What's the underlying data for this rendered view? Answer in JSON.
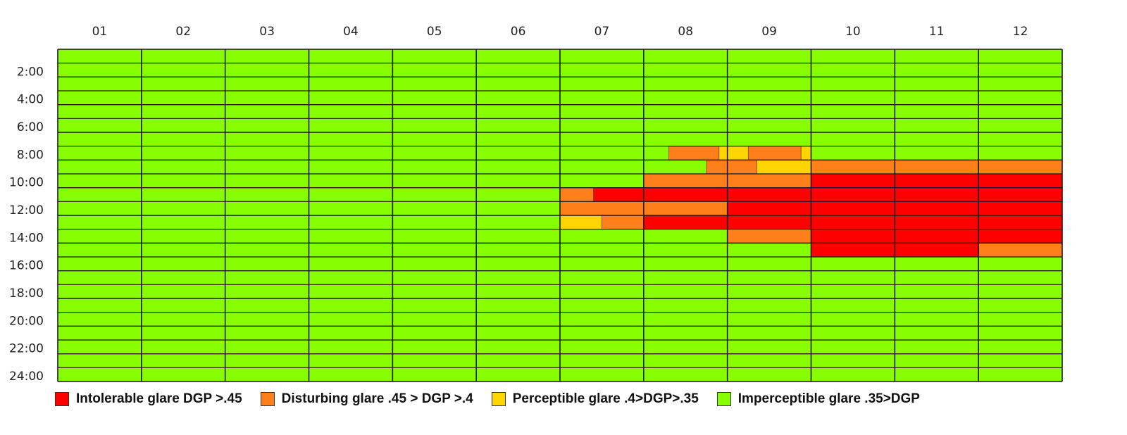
{
  "chart_data": {
    "type": "heatmap",
    "title": "",
    "xlabel": "",
    "ylabel": "",
    "months": [
      "01",
      "02",
      "03",
      "04",
      "05",
      "06",
      "07",
      "08",
      "09",
      "10",
      "11",
      "12"
    ],
    "hour_tick_labels": [
      "2:00",
      "4:00",
      "6:00",
      "8:00",
      "10:00",
      "12:00",
      "14:00",
      "16:00",
      "18:00",
      "20:00",
      "22:00",
      "24:00"
    ],
    "time_range_hours": [
      0,
      24
    ],
    "row_step_hours": 2,
    "default_category": "imperceptible",
    "categories": [
      {
        "key": "intolerable",
        "label": "Intolerable glare DGP >.45",
        "color": "#ff0000"
      },
      {
        "key": "disturbing",
        "label": "Disturbing glare .45 > DGP >.4",
        "color": "#ff7f1a"
      },
      {
        "key": "perceptible",
        "label": "Perceptible glare .4>DGP>.35",
        "color": "#ffd500"
      },
      {
        "key": "imperceptible",
        "label": "Imperceptible glare .35>DGP",
        "color": "#88ff00"
      }
    ],
    "glare_periods": [
      {
        "start_month": 7.3,
        "end_month": 7.9,
        "start_hour": 7,
        "end_hour": 8,
        "category": "disturbing"
      },
      {
        "start_month": 7.9,
        "end_month": 8.0,
        "start_hour": 7,
        "end_hour": 8,
        "category": "perceptible"
      },
      {
        "start_month": 8.0,
        "end_month": 8.25,
        "start_hour": 7,
        "end_hour": 8,
        "category": "perceptible"
      },
      {
        "start_month": 8.25,
        "end_month": 8.88,
        "start_hour": 7,
        "end_hour": 8,
        "category": "disturbing"
      },
      {
        "start_month": 8.88,
        "end_month": 9.0,
        "start_hour": 7,
        "end_hour": 8,
        "category": "perceptible"
      },
      {
        "start_month": 7.75,
        "end_month": 8.0,
        "start_hour": 8,
        "end_hour": 9,
        "category": "disturbing"
      },
      {
        "start_month": 8.0,
        "end_month": 8.35,
        "start_hour": 8,
        "end_hour": 9,
        "category": "disturbing"
      },
      {
        "start_month": 8.35,
        "end_month": 9.0,
        "start_hour": 8,
        "end_hour": 9,
        "category": "perceptible"
      },
      {
        "start_month": 9.0,
        "end_month": 12.0,
        "start_hour": 8,
        "end_hour": 9,
        "category": "disturbing"
      },
      {
        "start_month": 7.0,
        "end_month": 9.0,
        "start_hour": 9,
        "end_hour": 10,
        "category": "disturbing"
      },
      {
        "start_month": 9.0,
        "end_month": 12.0,
        "start_hour": 9,
        "end_hour": 15,
        "category": "intolerable"
      },
      {
        "start_month": 6.0,
        "end_month": 6.4,
        "start_hour": 10,
        "end_hour": 11,
        "category": "disturbing"
      },
      {
        "start_month": 6.4,
        "end_month": 9.0,
        "start_hour": 10,
        "end_hour": 11,
        "category": "intolerable"
      },
      {
        "start_month": 6.0,
        "end_month": 8.0,
        "start_hour": 11,
        "end_hour": 12,
        "category": "disturbing"
      },
      {
        "start_month": 8.0,
        "end_month": 9.0,
        "start_hour": 11,
        "end_hour": 12,
        "category": "intolerable"
      },
      {
        "start_month": 6.0,
        "end_month": 6.5,
        "start_hour": 12,
        "end_hour": 13,
        "category": "perceptible"
      },
      {
        "start_month": 6.5,
        "end_month": 7.0,
        "start_hour": 12,
        "end_hour": 13,
        "category": "disturbing"
      },
      {
        "start_month": 7.0,
        "end_month": 9.0,
        "start_hour": 12,
        "end_hour": 13,
        "category": "intolerable"
      },
      {
        "start_month": 8.0,
        "end_month": 9.0,
        "start_hour": 13,
        "end_hour": 14,
        "category": "disturbing"
      },
      {
        "start_month": 11.0,
        "end_month": 12.0,
        "start_hour": 14,
        "end_hour": 15,
        "category": "disturbing"
      }
    ]
  }
}
